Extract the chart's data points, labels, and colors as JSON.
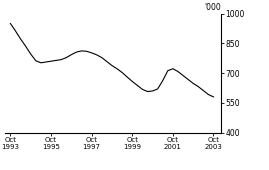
{
  "title": "",
  "ylabel": "'000",
  "ylim": [
    400,
    1000
  ],
  "yticks": [
    400,
    550,
    700,
    850,
    1000
  ],
  "xtick_years": [
    1993,
    1995,
    1997,
    1999,
    2001,
    2003
  ],
  "line_color": "#000000",
  "line_width": 0.8,
  "background_color": "#ffffff",
  "data_x": [
    1993.75,
    1994.0,
    1994.25,
    1994.5,
    1994.75,
    1995.0,
    1995.25,
    1995.5,
    1995.75,
    1996.0,
    1996.25,
    1996.5,
    1996.75,
    1997.0,
    1997.25,
    1997.5,
    1997.75,
    1998.0,
    1998.25,
    1998.5,
    1998.75,
    1999.0,
    1999.25,
    1999.5,
    1999.75,
    2000.0,
    2000.25,
    2000.5,
    2000.75,
    2001.0,
    2001.25,
    2001.5,
    2001.75,
    2002.0,
    2002.25,
    2002.5,
    2002.75,
    2003.0,
    2003.25,
    2003.5,
    2003.75
  ],
  "data_y": [
    950,
    912,
    872,
    835,
    796,
    762,
    752,
    756,
    760,
    764,
    768,
    778,
    793,
    806,
    812,
    810,
    802,
    792,
    778,
    758,
    738,
    722,
    703,
    680,
    658,
    638,
    618,
    607,
    610,
    620,
    662,
    712,
    722,
    708,
    688,
    668,
    648,
    632,
    612,
    592,
    580
  ]
}
